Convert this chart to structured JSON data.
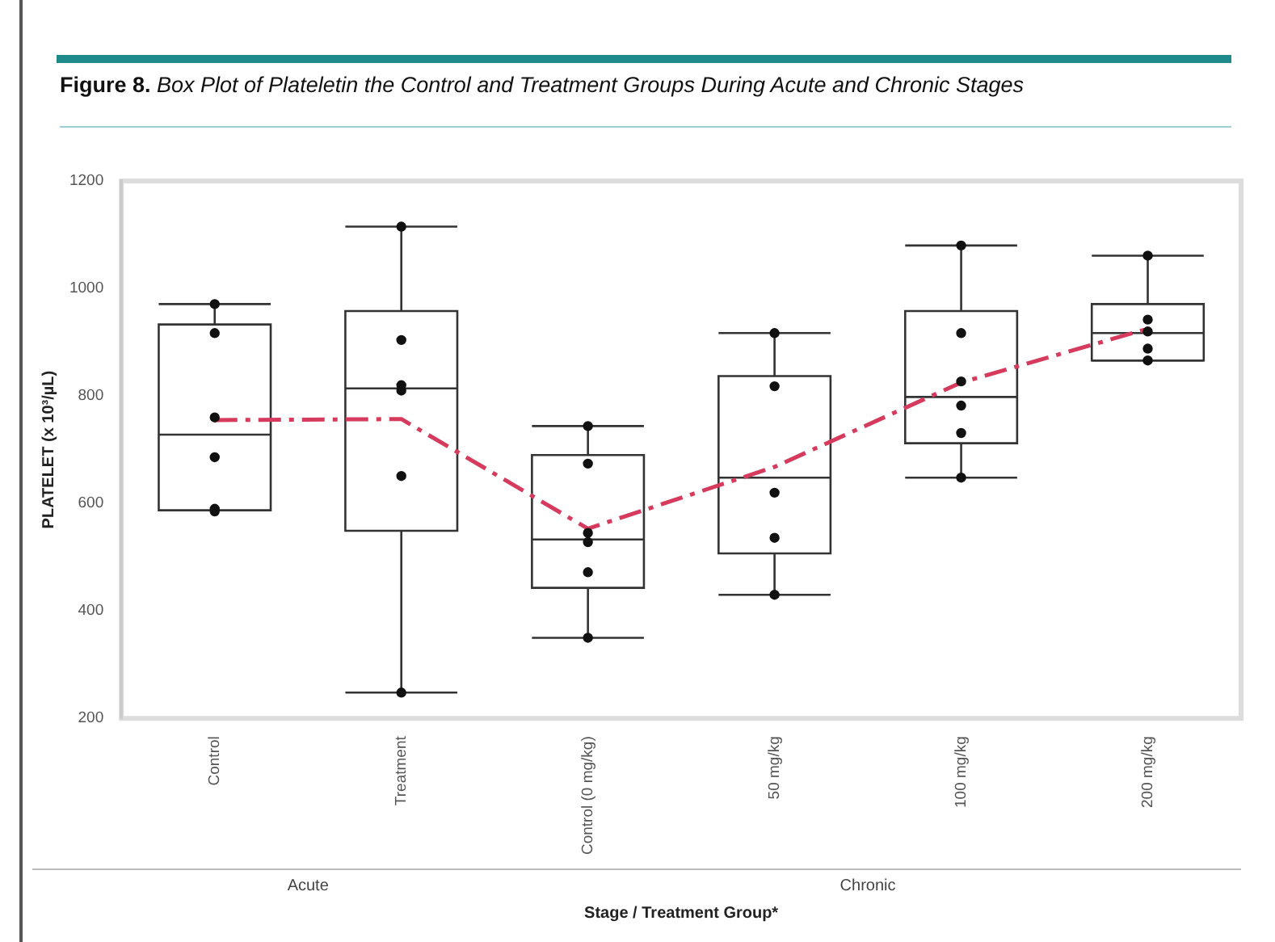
{
  "chart_data": {
    "type": "box",
    "title": "Figure 8. Box Plot of Plateletin the Control and Treatment Groups During Acute and Chronic Stages",
    "xlabel": "Stage / Treatment Group*",
    "ylabel": "PLATELET (x 10³/µL)",
    "categories": [
      "Control",
      "Treatment",
      "Control (0 mg/kg)",
      "50 mg/kg",
      "100 mg/kg",
      "200 mg/kg"
    ],
    "annotations": [
      "Acute",
      "Chronic"
    ],
    "ylim": [
      200,
      1200
    ],
    "yticks": [
      200,
      400,
      600,
      800,
      1000,
      1200
    ],
    "grid": false,
    "legend": false,
    "boxes": [
      {
        "low": 587,
        "q1": 587,
        "median": 728,
        "q3": 933,
        "high": 971
      },
      {
        "low": 248,
        "q1": 549,
        "median": 814,
        "q3": 958,
        "high": 1115
      },
      {
        "low": 350,
        "q1": 443,
        "median": 533,
        "q3": 690,
        "high": 744
      },
      {
        "low": 430,
        "q1": 507,
        "median": 648,
        "q3": 837,
        "high": 917
      },
      {
        "low": 648,
        "q1": 712,
        "median": 798,
        "q3": 958,
        "high": 1080
      },
      {
        "low": 866,
        "q1": 866,
        "median": 917,
        "q3": 971,
        "high": 1061
      }
    ],
    "series": [
      {
        "type": "scatter",
        "color": "#111111",
        "marker": "circle",
        "x": [
          "Control",
          "Control",
          "Control",
          "Control",
          "Control",
          "Control",
          "Treatment",
          "Treatment",
          "Treatment",
          "Treatment",
          "Treatment",
          "Treatment",
          "Control (0 mg/kg)",
          "Control (0 mg/kg)",
          "Control (0 mg/kg)",
          "Control (0 mg/kg)",
          "Control (0 mg/kg)",
          "Control (0 mg/kg)",
          "50 mg/kg",
          "50 mg/kg",
          "50 mg/kg",
          "50 mg/kg",
          "50 mg/kg",
          "100 mg/kg",
          "100 mg/kg",
          "100 mg/kg",
          "100 mg/kg",
          "100 mg/kg",
          "100 mg/kg",
          "200 mg/kg",
          "200 mg/kg",
          "200 mg/kg",
          "200 mg/kg",
          "200 mg/kg"
        ],
        "values": [
          971,
          917,
          760,
          686,
          590,
          585,
          1115,
          904,
          820,
          810,
          651,
          248,
          744,
          674,
          545,
          528,
          472,
          350,
          917,
          818,
          620,
          536,
          430,
          1080,
          917,
          827,
          782,
          731,
          648,
          1061,
          942,
          920,
          888,
          866
        ]
      },
      {
        "type": "line",
        "color": "#d63a5c",
        "marker": "none",
        "line_style": "dashed",
        "values": [
          755,
          757,
          553,
          668,
          825,
          925
        ]
      }
    ]
  }
}
